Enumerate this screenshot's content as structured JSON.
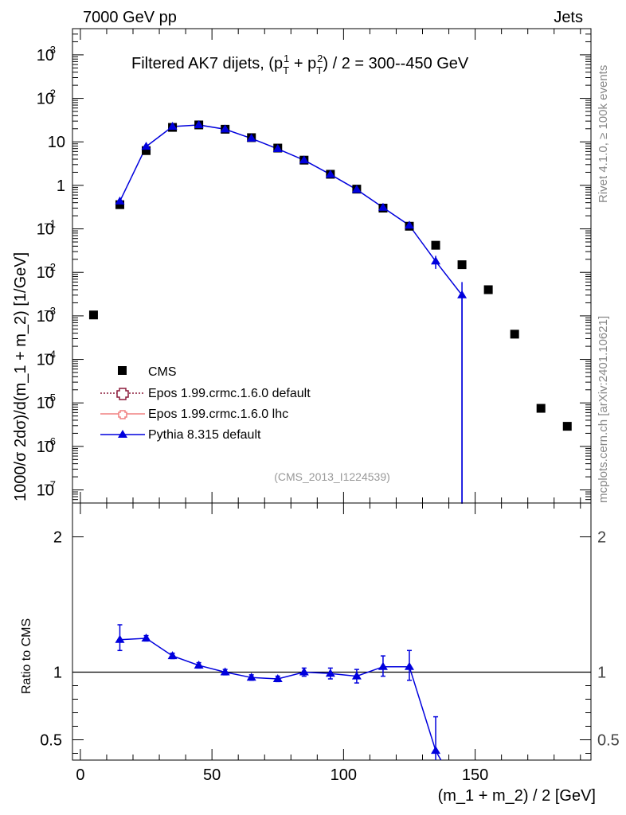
{
  "header": {
    "left": "7000 GeV pp",
    "right": "Jets",
    "side_top": "Rivet 4.1.0, ≥ 100k events",
    "side_bottom": "mcplots.cern.ch [arXiv:2401.10621]"
  },
  "chart_data": [
    {
      "type": "scatter",
      "title_parts": [
        "Filtered AK7 dijets, (p",
        "T",
        "1",
        " + p",
        "T",
        "2",
        ") / 2 = 300--450 GeV"
      ],
      "ylabel": "1000/σ  2dσ)/d(m_1 + m_2) [1/GeV]",
      "yscale": "log",
      "xlim": [
        -3,
        194
      ],
      "ylim": [
        5e-08,
        4000
      ],
      "watermark": "(CMS_2013_I1224539)",
      "y_ticks": [
        {
          "v": 1e-07,
          "base": "10",
          "exp": "−7"
        },
        {
          "v": 1e-06,
          "base": "10",
          "exp": "−6"
        },
        {
          "v": 1e-05,
          "base": "10",
          "exp": "−5"
        },
        {
          "v": 0.0001,
          "base": "10",
          "exp": "−4"
        },
        {
          "v": 0.001,
          "base": "10",
          "exp": "−3"
        },
        {
          "v": 0.01,
          "base": "10",
          "exp": "−2"
        },
        {
          "v": 0.1,
          "base": "10",
          "exp": "−1"
        },
        {
          "v": 1,
          "base": "1",
          "exp": ""
        },
        {
          "v": 10,
          "base": "10",
          "exp": ""
        },
        {
          "v": 100,
          "base": "10",
          "exp": "2"
        },
        {
          "v": 1000,
          "base": "10",
          "exp": "3"
        }
      ],
      "legend": [
        {
          "label": "CMS",
          "style": "data"
        },
        {
          "label": "Epos 1.99.crmc.1.6.0 default",
          "style": "epos-default"
        },
        {
          "label": "Epos 1.99.crmc.1.6.0 lhc",
          "style": "epos-lhc"
        },
        {
          "label": "Pythia 8.315 default",
          "style": "pythia"
        }
      ],
      "series": [
        {
          "name": "CMS",
          "color": "#000000",
          "x": [
            5,
            15,
            25,
            35,
            45,
            55,
            65,
            75,
            85,
            95,
            105,
            115,
            125,
            135,
            145,
            155,
            165,
            175,
            185
          ],
          "y": [
            0.00105,
            0.36,
            6.3,
            21.5,
            24.5,
            19.5,
            12.5,
            7.2,
            3.8,
            1.8,
            0.82,
            0.3,
            0.115,
            0.042,
            0.015,
            0.004,
            0.00038,
            7.5e-06,
            2.9e-06
          ]
        },
        {
          "name": "Pythia 8.315 default",
          "color": "#0000dd",
          "x": [
            15,
            25,
            35,
            45,
            55,
            65,
            75,
            85,
            95,
            105,
            115,
            125,
            135,
            145
          ],
          "y": [
            0.43,
            7.8,
            22.5,
            24.5,
            19.5,
            12.0,
            6.9,
            3.8,
            1.78,
            0.8,
            0.31,
            0.12,
            0.018,
            0.003
          ],
          "err_lo": [
            0.03,
            0.2,
            0.4,
            0.4,
            0.3,
            0.2,
            0.1,
            0.06,
            0.04,
            0.02,
            0.01,
            0.006,
            0.006,
            0.003
          ],
          "err_hi": [
            0.03,
            0.2,
            0.4,
            0.4,
            0.3,
            0.2,
            0.1,
            0.06,
            0.04,
            0.02,
            0.01,
            0.006,
            0.006,
            0.003
          ]
        }
      ]
    },
    {
      "type": "line",
      "ylabel": "Ratio to CMS",
      "xlabel": "(m_1 + m_2) / 2 [GeV]",
      "xlim": [
        -3,
        194
      ],
      "ylim": [
        0.35,
        2.25
      ],
      "x_ticks": [
        0,
        50,
        100,
        150
      ],
      "y_ticks": [
        0.5,
        1,
        2
      ],
      "reference": 1,
      "series": [
        {
          "name": "Pythia 8.315 default",
          "color": "#0000dd",
          "x": [
            15,
            25,
            35,
            45,
            55,
            65,
            75,
            85,
            95,
            105,
            115,
            125,
            135
          ],
          "y": [
            1.24,
            1.25,
            1.12,
            1.05,
            1.0,
            0.96,
            0.95,
            1.0,
            0.99,
            0.97,
            1.04,
            1.04,
            0.42
          ],
          "err_lo": [
            0.08,
            0.02,
            0.02,
            0.02,
            0.02,
            0.02,
            0.02,
            0.03,
            0.04,
            0.05,
            0.07,
            0.1,
            0.14
          ],
          "err_hi": [
            0.11,
            0.02,
            0.02,
            0.02,
            0.02,
            0.02,
            0.02,
            0.03,
            0.04,
            0.05,
            0.08,
            0.12,
            0.25
          ]
        }
      ]
    }
  ]
}
